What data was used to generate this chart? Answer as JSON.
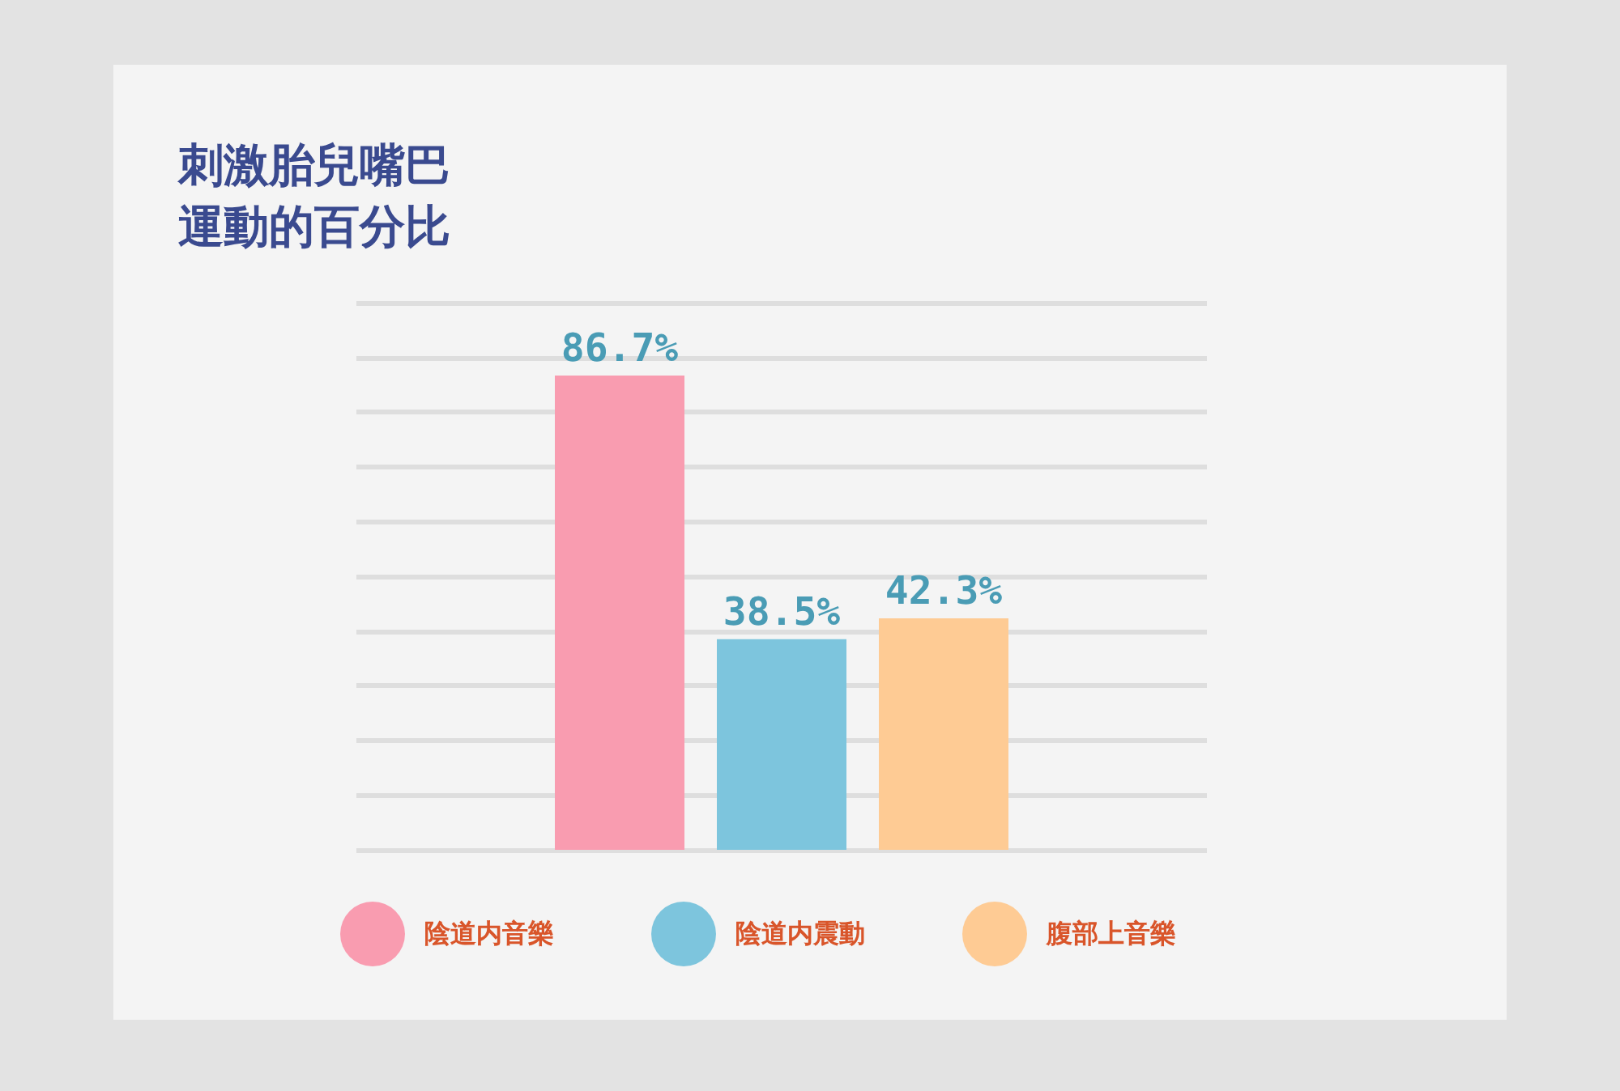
{
  "chart_data": {
    "type": "bar",
    "title": "刺激胎兒嘴巴運動的百分比",
    "categories": [
      null
    ],
    "series": [
      {
        "name": "陰道内音樂",
        "color": "#f99cb0",
        "values": [
          86.7
        ],
        "value_labels": [
          "86.7%"
        ]
      },
      {
        "name": "陰道内震動",
        "color": "#7dc5dd",
        "values": [
          38.5
        ],
        "value_labels": [
          "38.5%"
        ]
      },
      {
        "name": "腹部上音樂",
        "color": "#fecb94",
        "values": [
          42.3
        ],
        "value_labels": [
          "42.3%"
        ]
      }
    ],
    "grid": "y",
    "tick_labels": false,
    "legend": "bottom"
  }
}
